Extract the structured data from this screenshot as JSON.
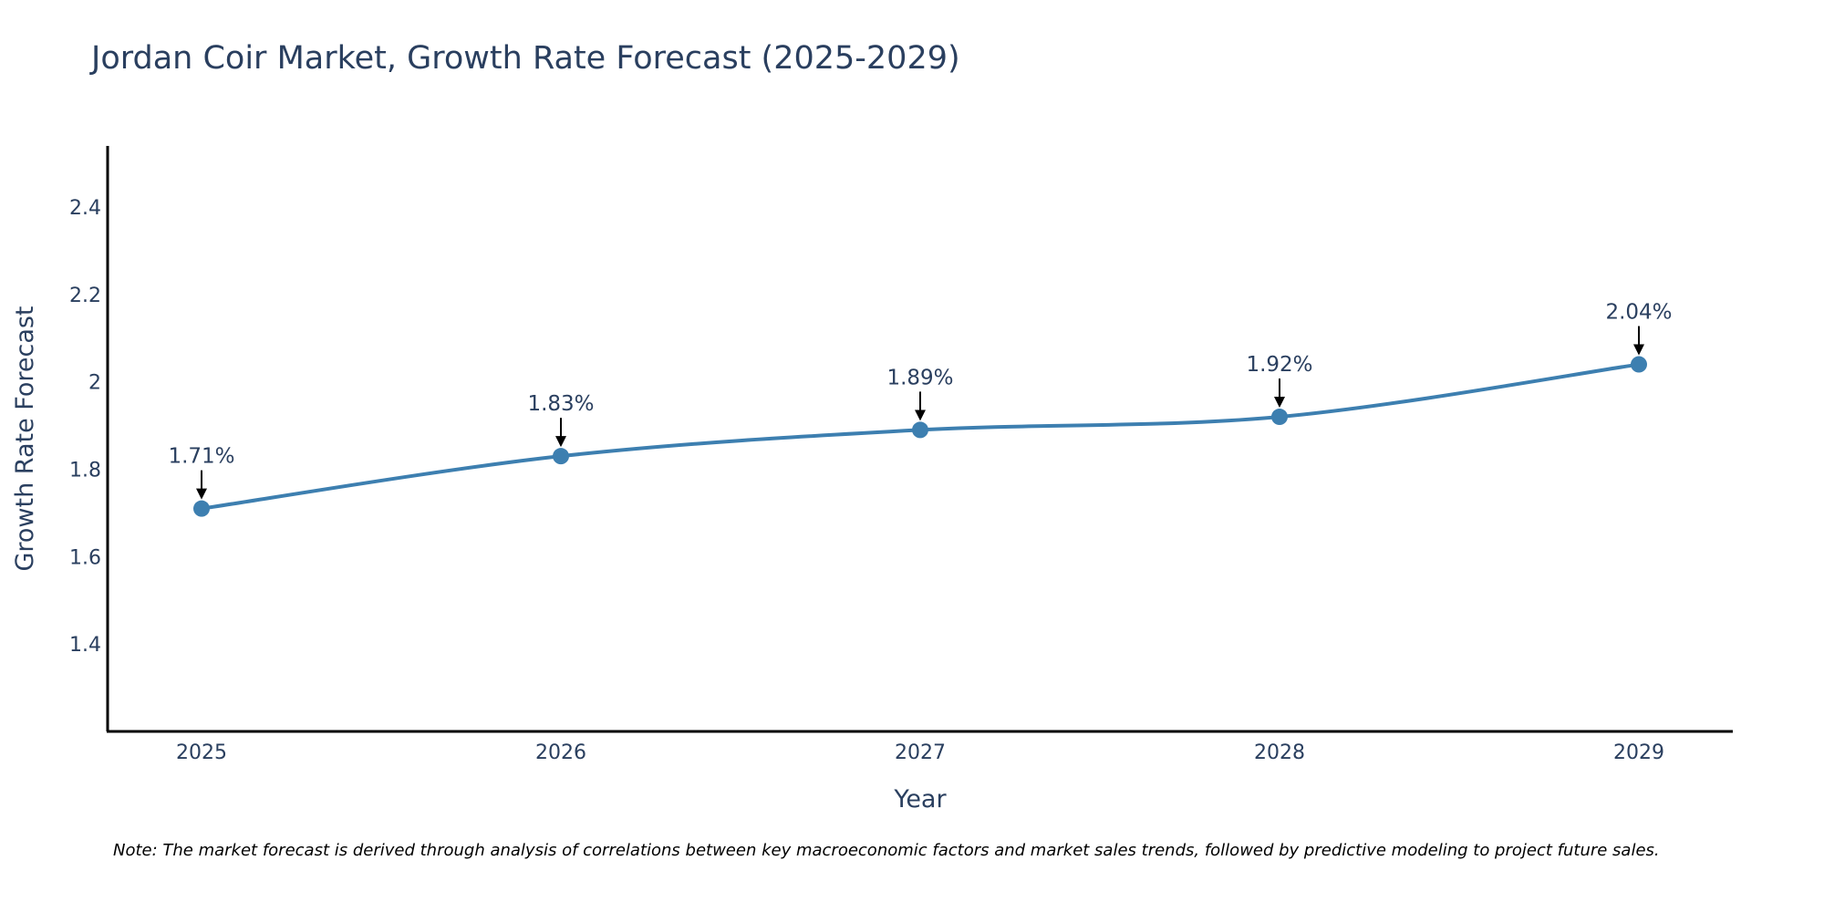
{
  "chart_data": {
    "type": "line",
    "title": "Jordan Coir Market, Growth Rate Forecast (2025-2029)",
    "xlabel": "Year",
    "ylabel": "Growth Rate Forecast",
    "categories": [
      "2025",
      "2026",
      "2027",
      "2028",
      "2029"
    ],
    "series": [
      {
        "name": "Growth Rate Forecast",
        "values": [
          1.71,
          1.83,
          1.89,
          1.92,
          2.04
        ],
        "labels": [
          "1.71%",
          "1.83%",
          "1.89%",
          "1.92%",
          "2.04%"
        ]
      }
    ],
    "ylim": [
      1.2,
      2.54
    ],
    "yticks": [
      1.4,
      1.6,
      1.8,
      2.0,
      2.2,
      2.4
    ],
    "ytick_labels": [
      "1.4",
      "1.6",
      "1.8",
      "2",
      "2.2",
      "2.4"
    ],
    "grid": false,
    "line_color": "#3d7fb0",
    "axis_color": "#000000"
  },
  "note": "Note: The market forecast is derived through analysis of correlations between key macroeconomic factors and market sales trends, followed by predictive modeling to project future sales."
}
